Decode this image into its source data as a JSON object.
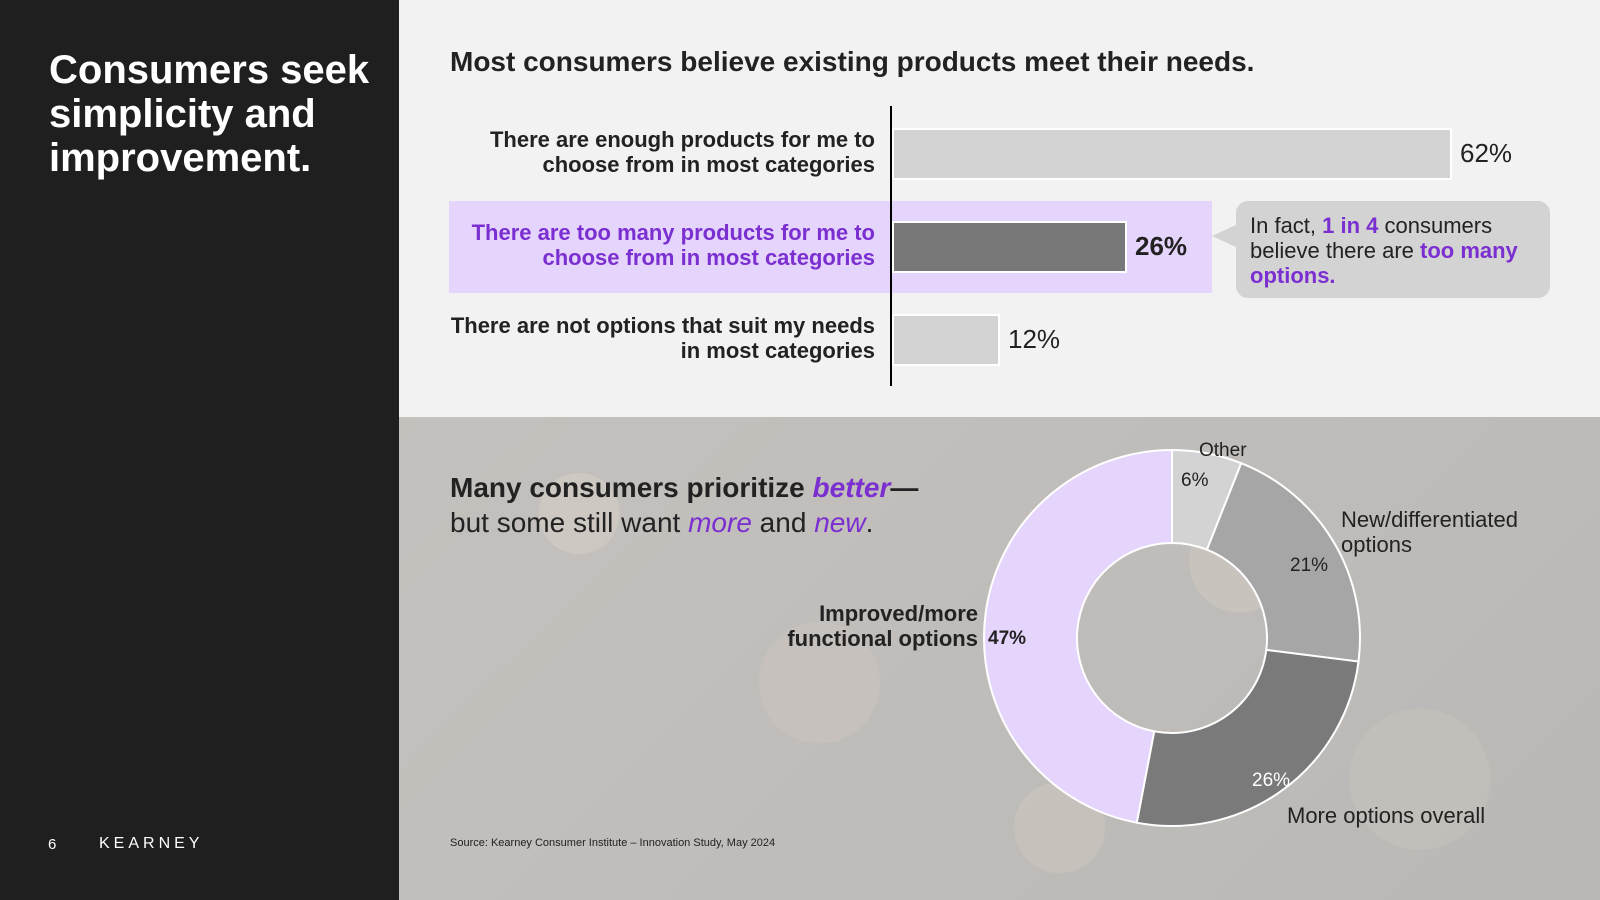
{
  "slide": {
    "title": "Consumers seek\nsimplicity and\nimprovement.",
    "page_number": "6",
    "brand": "KEARNEY",
    "source": "Source: Kearney Consumer Institute – Innovation Study, May 2024"
  },
  "bar_section": {
    "heading": "Most consumers believe existing products meet their needs.",
    "callout": {
      "prefix": "In fact, ",
      "accent1": "1 in 4",
      "middle": " consumers believe there are ",
      "accent2": "too many options."
    }
  },
  "donut_section": {
    "heading": {
      "part1": "Many consumers prioritize ",
      "better": "better",
      "dash": "—",
      "part2": "but some still want ",
      "more": "more",
      "and": " and ",
      "new": "new",
      "end": "."
    }
  },
  "colors": {
    "accent": "#7b2fd1",
    "highlight_band": "#e5d4fb",
    "bar_default": "#d3d3d3",
    "bar_highlight": "#787878",
    "left_panel": "#1f1f1f"
  },
  "chart_data": [
    {
      "type": "bar",
      "orientation": "horizontal",
      "title": "Most consumers believe existing products meet their needs.",
      "categories": [
        "There are enough products for me to choose from in most categories",
        "There are too many products for me to choose from in most categories",
        "There are not options that suit my needs in most categories"
      ],
      "values": [
        62,
        26,
        12
      ],
      "value_labels": [
        "62%",
        "26%",
        "12%"
      ],
      "highlighted_index": 1,
      "xlim": [
        0,
        100
      ],
      "grid": false
    },
    {
      "type": "pie",
      "style": "donut",
      "categories": [
        "Other",
        "New/differentiated options",
        "More options overall",
        "Improved/more functional options"
      ],
      "values": [
        6,
        21,
        26,
        47
      ],
      "value_labels": [
        "6%",
        "21%",
        "26%",
        "47%"
      ],
      "colors": [
        "#d3d3d3",
        "#a6a6a6",
        "#7a7a7a",
        "#e5d4fb"
      ]
    }
  ]
}
